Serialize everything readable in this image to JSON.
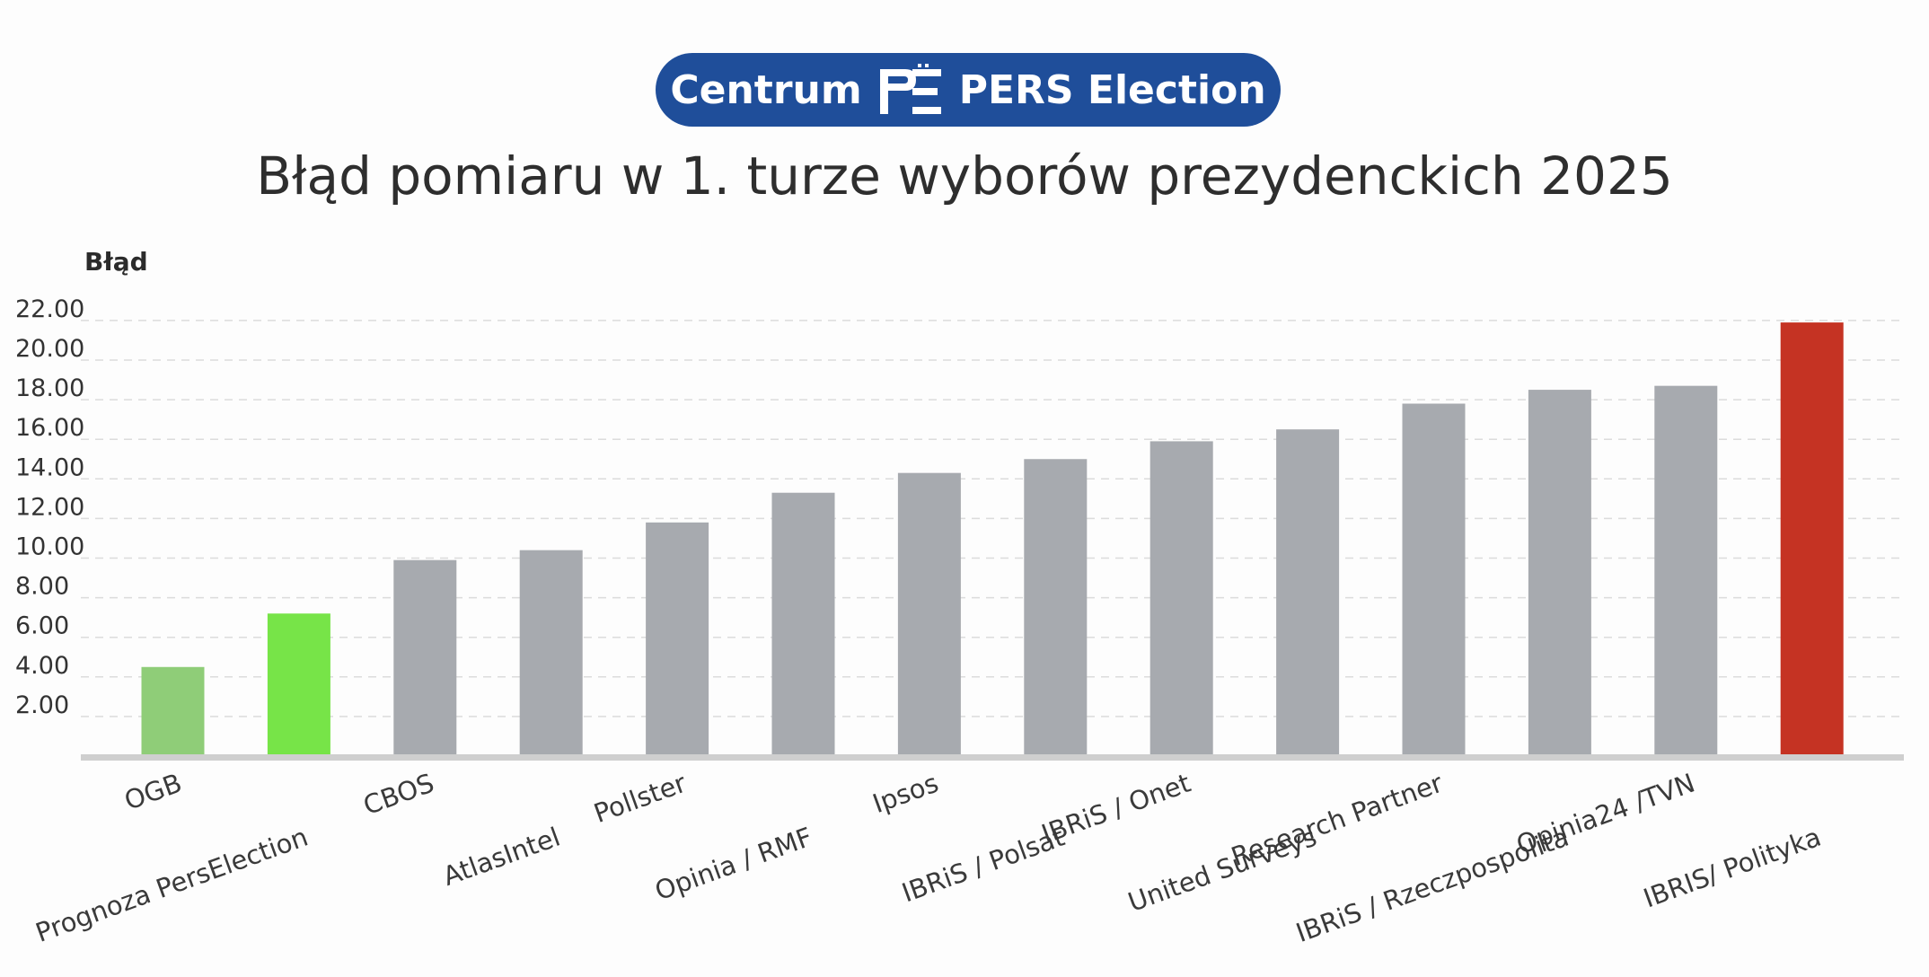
{
  "header": {
    "brand_left": "Centrum",
    "brand_right": "PERS Election",
    "logo_icon": "pe-monogram-icon",
    "brand_color": "#1f4e9a"
  },
  "chart_data": {
    "type": "bar",
    "title": "Błąd pomiaru w 1. turze wyborów prezydenckich 2025",
    "xlabel": "",
    "ylabel": "Błąd",
    "ylim": [
      0,
      23
    ],
    "yticks": [
      "2.00",
      "4.00",
      "6.00",
      "8.00",
      "10.00",
      "12.00",
      "14.00",
      "16.00",
      "18.00",
      "20.00",
      "22.00"
    ],
    "grid": true,
    "categories": [
      "OGB",
      "Prognoza PersElection",
      "CBOS",
      "AtlasIntel",
      "Pollster",
      "Opinia / RMF",
      "Ipsos",
      "IBRiS / Polsat",
      "IBRiS / Onet",
      "United Surveys",
      "Research Partner",
      "IBRiS / Rzeczpospolita",
      "Opinia24 /TVN",
      "IBRIS/ Polityka"
    ],
    "values": [
      4.5,
      7.2,
      9.9,
      10.4,
      11.8,
      13.3,
      14.3,
      15.0,
      15.9,
      16.5,
      17.8,
      18.5,
      18.7,
      21.9
    ],
    "colors": [
      "#8fcd78",
      "#77e448",
      "#a7aaaf",
      "#a7aaaf",
      "#a7aaaf",
      "#a7aaaf",
      "#a7aaaf",
      "#a7aaaf",
      "#a7aaaf",
      "#a7aaaf",
      "#a7aaaf",
      "#a7aaaf",
      "#a7aaaf",
      "#c53323"
    ]
  }
}
